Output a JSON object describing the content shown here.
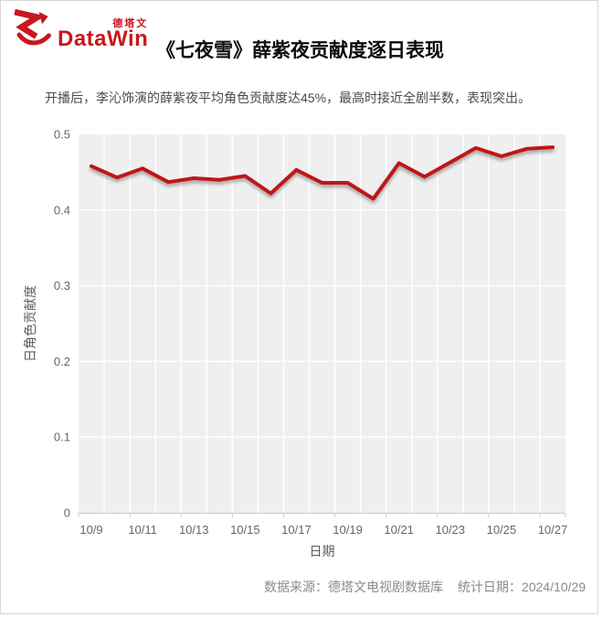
{
  "logo": {
    "brand_cn": "德塔文",
    "brand_en": "DataWin",
    "color": "#c8171e"
  },
  "header": {
    "title": "《七夜雪》薛紫夜贡献度逐日表现",
    "subtitle": "开播后，李沁饰演的薛紫夜平均角色贡献度达45%，最高时接近全剧半数，表现突出。"
  },
  "footer": {
    "source": "数据来源：德塔文电视剧数据库",
    "stat_date": "统计日期：2024/10/29"
  },
  "chart_data": {
    "type": "line",
    "title": "《七夜雪》薛紫夜贡献度逐日表现",
    "xlabel": "日期",
    "ylabel": "日角色贡献度",
    "x": [
      "10/9",
      "10/10",
      "10/11",
      "10/12",
      "10/13",
      "10/14",
      "10/15",
      "10/16",
      "10/17",
      "10/18",
      "10/19",
      "10/20",
      "10/21",
      "10/22",
      "10/23",
      "10/24",
      "10/25",
      "10/26",
      "10/27"
    ],
    "values": [
      0.458,
      0.443,
      0.455,
      0.437,
      0.442,
      0.44,
      0.445,
      0.422,
      0.453,
      0.436,
      0.436,
      0.415,
      0.462,
      0.444,
      0.463,
      0.482,
      0.471,
      0.481,
      0.483
    ],
    "ylim": [
      0,
      0.5
    ],
    "y_ticks": [
      0,
      0.1,
      0.2,
      0.3,
      0.4,
      0.5
    ],
    "x_label_interval": 2,
    "grid": true,
    "legend": "none",
    "line_color": "#c01218",
    "plot_bg": "#efefef",
    "grid_color": "#ffffff",
    "axis_color": "#cccccc",
    "tick_label_color": "#666666"
  }
}
